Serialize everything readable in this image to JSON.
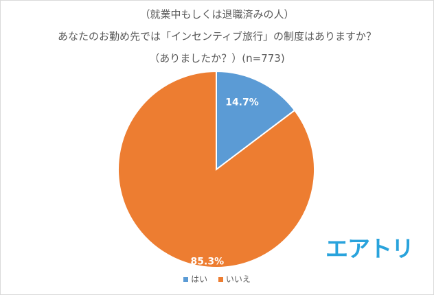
{
  "chart_data": {
    "type": "pie",
    "title_lines": [
      "（就業中もしくは退職済みの人）",
      "あなたのお勤め先では「インセンティブ旅行」の制度はありますか？",
      "（ありましたか？）(n=773)"
    ],
    "categories": [
      "はい",
      "いいえ"
    ],
    "values": [
      14.7,
      85.3
    ],
    "data_labels": [
      "14.7%",
      "85.3%"
    ],
    "colors": [
      "#5b9bd5",
      "#ed7d31"
    ],
    "legend_position": "bottom"
  },
  "logo_text": "エアトリ"
}
